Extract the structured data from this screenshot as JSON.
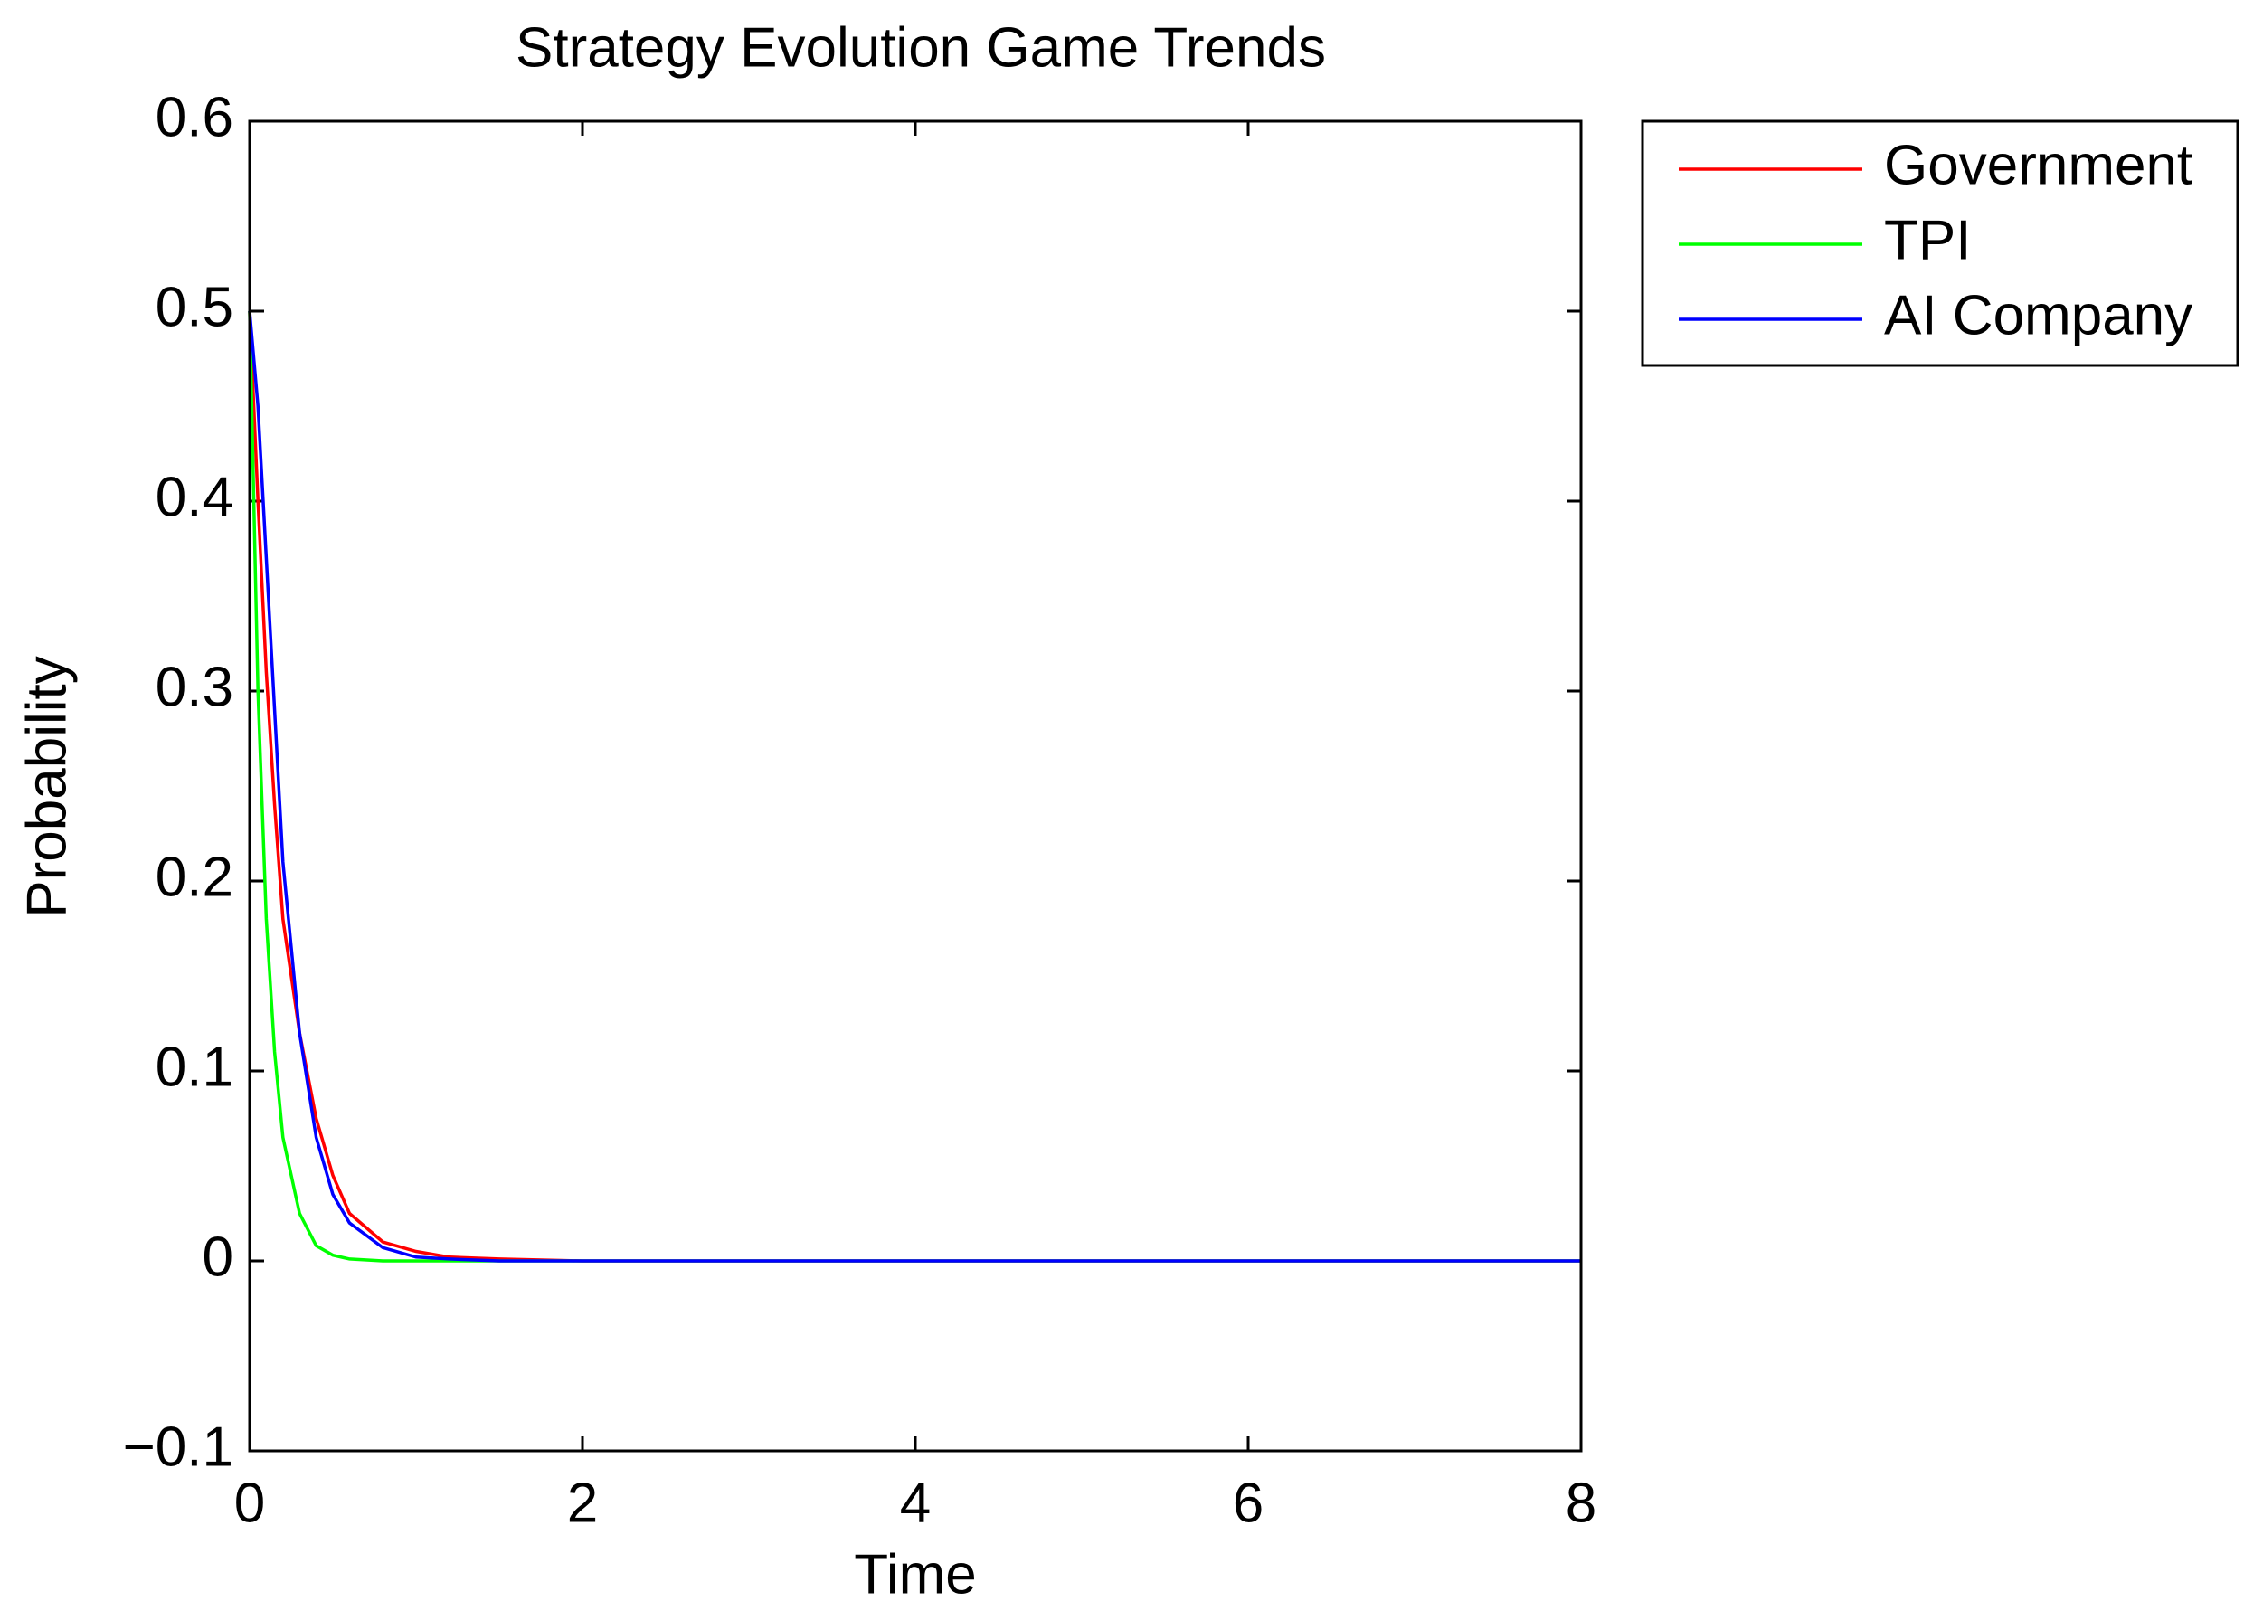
{
  "chart_data": {
    "type": "line",
    "title": "Strategy Evolution Game Trends",
    "x_label": "Time",
    "y_label": "Probability",
    "x": [
      0,
      0.05,
      0.1,
      0.15,
      0.2,
      0.3,
      0.4,
      0.5,
      0.6,
      0.8,
      1.0,
      1.2,
      1.5,
      2,
      3,
      4,
      5,
      6,
      7,
      8
    ],
    "series": [
      {
        "name": "Government",
        "color": "#ff0000",
        "values": [
          0.5,
          0.4,
          0.31,
          0.24,
          0.18,
          0.12,
          0.075,
          0.045,
          0.025,
          0.01,
          0.005,
          0.002,
          0.001,
          0,
          0,
          0,
          0,
          0,
          0,
          0
        ]
      },
      {
        "name": "TPI",
        "color": "#00ff00",
        "values": [
          0.5,
          0.3,
          0.18,
          0.11,
          0.065,
          0.025,
          0.008,
          0.003,
          0.001,
          0,
          0,
          0,
          0,
          0,
          0,
          0,
          0,
          0,
          0,
          0
        ]
      },
      {
        "name": "AI Company",
        "color": "#0000ff",
        "values": [
          0.5,
          0.45,
          0.37,
          0.29,
          0.21,
          0.12,
          0.065,
          0.035,
          0.02,
          0.007,
          0.002,
          0.001,
          0,
          0,
          0,
          0,
          0,
          0,
          0,
          0
        ]
      }
    ],
    "xlim": [
      0,
      8
    ],
    "ylim": [
      -0.1,
      0.6
    ],
    "xticks": [
      0,
      2,
      4,
      6,
      8
    ],
    "yticks": [
      {
        "value": -0.1,
        "label": "−0.1"
      },
      0,
      0.1,
      0.2,
      0.3,
      0.4,
      0.5,
      0.6
    ],
    "grid": false,
    "legend": "outside-top-right"
  }
}
